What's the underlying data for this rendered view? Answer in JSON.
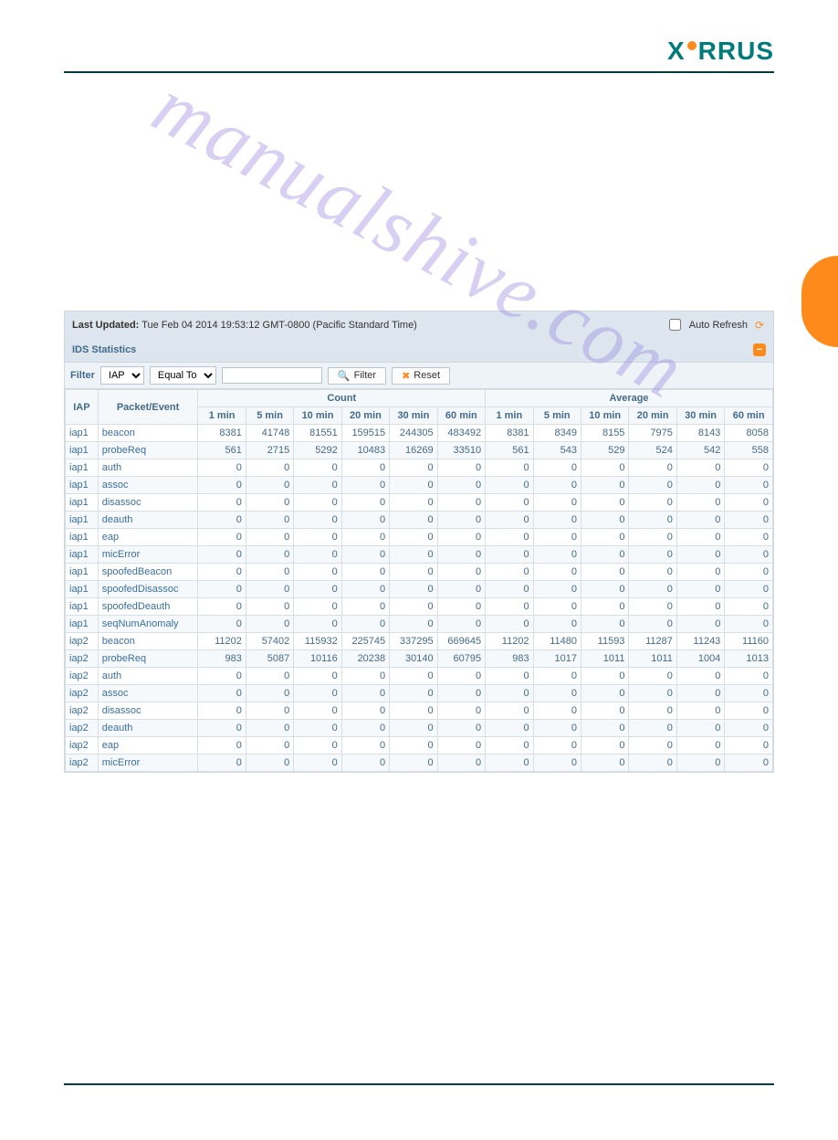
{
  "logo_text": "XIRRUS",
  "header": {
    "last_updated_label": "Last Updated:",
    "last_updated_value": "Tue Feb 04 2014 19:53:12 GMT-0800 (Pacific Standard Time)",
    "auto_refresh_label": "Auto Refresh"
  },
  "section_title": "IDS Statistics",
  "filter": {
    "label": "Filter",
    "field_options": [
      "IAP"
    ],
    "field_selected": "IAP",
    "op_options": [
      "Equal To"
    ],
    "op_selected": "Equal To",
    "value": "",
    "filter_btn": "Filter",
    "reset_btn": "Reset"
  },
  "columns": {
    "iap": "IAP",
    "event": "Packet/Event",
    "group_count": "Count",
    "group_average": "Average",
    "intervals": [
      "1 min",
      "5 min",
      "10 min",
      "20 min",
      "30 min",
      "60 min"
    ]
  },
  "rows": [
    {
      "iap": "iap1",
      "event": "beacon",
      "count": [
        8381,
        41748,
        81551,
        159515,
        244305,
        483492
      ],
      "avg": [
        8381,
        8349,
        8155,
        7975,
        8143,
        8058
      ]
    },
    {
      "iap": "iap1",
      "event": "probeReq",
      "count": [
        561,
        2715,
        5292,
        10483,
        16269,
        33510
      ],
      "avg": [
        561,
        543,
        529,
        524,
        542,
        558
      ]
    },
    {
      "iap": "iap1",
      "event": "auth",
      "count": [
        0,
        0,
        0,
        0,
        0,
        0
      ],
      "avg": [
        0,
        0,
        0,
        0,
        0,
        0
      ]
    },
    {
      "iap": "iap1",
      "event": "assoc",
      "count": [
        0,
        0,
        0,
        0,
        0,
        0
      ],
      "avg": [
        0,
        0,
        0,
        0,
        0,
        0
      ]
    },
    {
      "iap": "iap1",
      "event": "disassoc",
      "count": [
        0,
        0,
        0,
        0,
        0,
        0
      ],
      "avg": [
        0,
        0,
        0,
        0,
        0,
        0
      ]
    },
    {
      "iap": "iap1",
      "event": "deauth",
      "count": [
        0,
        0,
        0,
        0,
        0,
        0
      ],
      "avg": [
        0,
        0,
        0,
        0,
        0,
        0
      ]
    },
    {
      "iap": "iap1",
      "event": "eap",
      "count": [
        0,
        0,
        0,
        0,
        0,
        0
      ],
      "avg": [
        0,
        0,
        0,
        0,
        0,
        0
      ]
    },
    {
      "iap": "iap1",
      "event": "micError",
      "count": [
        0,
        0,
        0,
        0,
        0,
        0
      ],
      "avg": [
        0,
        0,
        0,
        0,
        0,
        0
      ]
    },
    {
      "iap": "iap1",
      "event": "spoofedBeacon",
      "count": [
        0,
        0,
        0,
        0,
        0,
        0
      ],
      "avg": [
        0,
        0,
        0,
        0,
        0,
        0
      ]
    },
    {
      "iap": "iap1",
      "event": "spoofedDisassoc",
      "count": [
        0,
        0,
        0,
        0,
        0,
        0
      ],
      "avg": [
        0,
        0,
        0,
        0,
        0,
        0
      ]
    },
    {
      "iap": "iap1",
      "event": "spoofedDeauth",
      "count": [
        0,
        0,
        0,
        0,
        0,
        0
      ],
      "avg": [
        0,
        0,
        0,
        0,
        0,
        0
      ]
    },
    {
      "iap": "iap1",
      "event": "seqNumAnomaly",
      "count": [
        0,
        0,
        0,
        0,
        0,
        0
      ],
      "avg": [
        0,
        0,
        0,
        0,
        0,
        0
      ]
    },
    {
      "iap": "iap2",
      "event": "beacon",
      "count": [
        11202,
        57402,
        115932,
        225745,
        337295,
        669645
      ],
      "avg": [
        11202,
        11480,
        11593,
        11287,
        11243,
        11160
      ]
    },
    {
      "iap": "iap2",
      "event": "probeReq",
      "count": [
        983,
        5087,
        10116,
        20238,
        30140,
        60795
      ],
      "avg": [
        983,
        1017,
        1011,
        1011,
        1004,
        1013
      ]
    },
    {
      "iap": "iap2",
      "event": "auth",
      "count": [
        0,
        0,
        0,
        0,
        0,
        0
      ],
      "avg": [
        0,
        0,
        0,
        0,
        0,
        0
      ]
    },
    {
      "iap": "iap2",
      "event": "assoc",
      "count": [
        0,
        0,
        0,
        0,
        0,
        0
      ],
      "avg": [
        0,
        0,
        0,
        0,
        0,
        0
      ]
    },
    {
      "iap": "iap2",
      "event": "disassoc",
      "count": [
        0,
        0,
        0,
        0,
        0,
        0
      ],
      "avg": [
        0,
        0,
        0,
        0,
        0,
        0
      ]
    },
    {
      "iap": "iap2",
      "event": "deauth",
      "count": [
        0,
        0,
        0,
        0,
        0,
        0
      ],
      "avg": [
        0,
        0,
        0,
        0,
        0,
        0
      ]
    },
    {
      "iap": "iap2",
      "event": "eap",
      "count": [
        0,
        0,
        0,
        0,
        0,
        0
      ],
      "avg": [
        0,
        0,
        0,
        0,
        0,
        0
      ]
    },
    {
      "iap": "iap2",
      "event": "micError",
      "count": [
        0,
        0,
        0,
        0,
        0,
        0
      ],
      "avg": [
        0,
        0,
        0,
        0,
        0,
        0
      ]
    }
  ],
  "watermark": "manualshive.com"
}
